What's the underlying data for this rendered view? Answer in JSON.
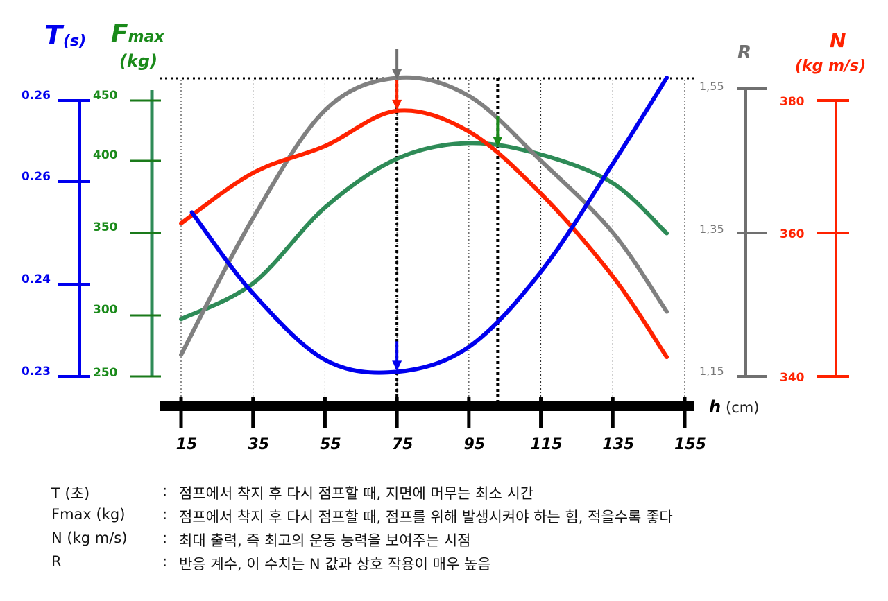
{
  "chart_data": {
    "type": "line",
    "x_axis": {
      "title": "h",
      "unit": "(cm)",
      "ticks": [
        "15",
        "35",
        "55",
        "75",
        "95",
        "115",
        "135",
        "155"
      ],
      "range": [
        15,
        155
      ]
    },
    "axes": {
      "T": {
        "title": "T",
        "unit": "(s)",
        "color": "#0000ee",
        "ticks": [
          "0.26",
          "0.26",
          "0.24",
          "0.23"
        ]
      },
      "Fmax": {
        "title": "Fmax",
        "unit": "(kg)",
        "color": "#1a8a1a",
        "ticks": [
          "450",
          "400",
          "350",
          "300",
          "250"
        ],
        "range": [
          250,
          450
        ]
      },
      "R": {
        "title": "R",
        "color": "#707070",
        "ticks": [
          "1,55",
          "1,35",
          "1,15"
        ],
        "range": [
          1.15,
          1.55
        ]
      },
      "N": {
        "title": "N",
        "unit": "(kg m/s)",
        "color": "#ff2200",
        "ticks": [
          "380",
          "360",
          "340"
        ],
        "range": [
          340,
          380
        ]
      }
    },
    "series": [
      {
        "name": "T",
        "axis": "T",
        "color": "#0000ee",
        "x": [
          18,
          35,
          55,
          75,
          95,
          115,
          135,
          150
        ],
        "y": [
          0.247,
          0.239,
          0.2318,
          0.2305,
          0.2332,
          0.2412,
          0.2522,
          0.2628
        ]
      },
      {
        "name": "Fmax",
        "axis": "Fmax",
        "color": "#2e8b57",
        "x": [
          15,
          35,
          55,
          75,
          95,
          115,
          135,
          150
        ],
        "y": [
          290,
          315,
          368,
          402,
          413,
          405,
          385,
          350
        ]
      },
      {
        "name": "R",
        "axis": "R",
        "color": "#808080",
        "x": [
          15,
          35,
          55,
          75,
          95,
          115,
          135,
          150
        ],
        "y": [
          1.18,
          1.37,
          1.52,
          1.565,
          1.54,
          1.45,
          1.35,
          1.24
        ]
      },
      {
        "name": "N",
        "axis": "N",
        "color": "#ff2200",
        "x": [
          15,
          35,
          55,
          75,
          95,
          115,
          135,
          150
        ],
        "y": [
          362.2,
          369.5,
          373.4,
          378.5,
          375.5,
          366.5,
          354.5,
          342.8
        ]
      }
    ],
    "markers": [
      {
        "x": 75,
        "color": "#707070"
      },
      {
        "x": 75,
        "color": "#ff2200"
      },
      {
        "x": 75,
        "color": "#0000ee"
      },
      {
        "x": 103,
        "color": "#1a8a1a"
      }
    ],
    "dotted_verticals": [
      75,
      103
    ],
    "grid": true
  },
  "legend": [
    {
      "key": "T (초)",
      "sep": ":",
      "desc": "점프에서 착지 후 다시 점프할 때, 지면에 머무는 최소 시간"
    },
    {
      "key": "Fmax (kg)",
      "sep": ":",
      "desc": "점프에서 착지 후 다시 점프할 때, 점프를 위해 발생시켜야 하는 힘, 적을수록 좋다"
    },
    {
      "key": "N (kg m/s)",
      "sep": ":",
      "desc": "최대 출력, 즉 최고의 운동 능력을 보여주는 시점"
    },
    {
      "key": "R",
      "sep": ":",
      "desc": "반응 계수, 이 수치는 N 값과 상호 작용이 매우 높음"
    }
  ]
}
